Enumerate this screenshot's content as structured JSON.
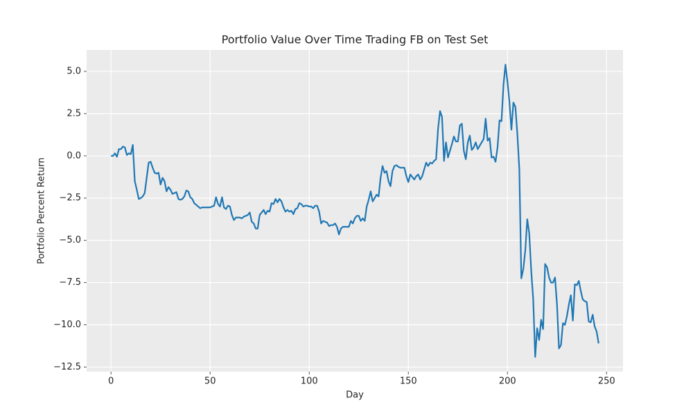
{
  "chart_data": {
    "type": "line",
    "title": "Portfolio Value Over Time Trading FB on Test Set",
    "x_label": "Day",
    "y_label": "Portfolio Percent Return",
    "x": [
      0,
      1,
      2,
      3,
      4,
      5,
      6,
      7,
      8,
      9,
      10,
      11,
      12,
      13,
      14,
      15,
      16,
      17,
      18,
      19,
      20,
      21,
      22,
      23,
      24,
      25,
      26,
      27,
      28,
      29,
      30,
      31,
      32,
      33,
      34,
      35,
      36,
      37,
      38,
      39,
      40,
      41,
      42,
      43,
      44,
      45,
      46,
      47,
      48,
      49,
      50,
      51,
      52,
      53,
      54,
      55,
      56,
      57,
      58,
      59,
      60,
      61,
      62,
      63,
      64,
      65,
      66,
      67,
      68,
      69,
      70,
      71,
      72,
      73,
      74,
      75,
      76,
      77,
      78,
      79,
      80,
      81,
      82,
      83,
      84,
      85,
      86,
      87,
      88,
      89,
      90,
      91,
      92,
      93,
      94,
      95,
      96,
      97,
      98,
      99,
      100,
      101,
      102,
      103,
      104,
      105,
      106,
      107,
      108,
      109,
      110,
      111,
      112,
      113,
      114,
      115,
      116,
      117,
      118,
      119,
      120,
      121,
      122,
      123,
      124,
      125,
      126,
      127,
      128,
      129,
      130,
      131,
      132,
      133,
      134,
      135,
      136,
      137,
      138,
      139,
      140,
      141,
      142,
      143,
      144,
      145,
      146,
      147,
      148,
      149,
      150,
      151,
      152,
      153,
      154,
      155,
      156,
      157,
      158,
      159,
      160,
      161,
      162,
      163,
      164,
      165,
      166,
      167,
      168,
      169,
      170,
      171,
      172,
      173,
      174,
      175,
      176,
      177,
      178,
      179,
      180,
      181,
      182,
      183,
      184,
      185,
      186,
      187,
      188,
      189,
      190,
      191,
      192,
      193,
      194,
      195,
      196,
      197,
      198,
      199,
      200,
      201,
      202,
      203,
      204,
      205,
      206,
      207,
      208,
      209,
      210,
      211,
      212,
      213,
      214,
      215,
      216,
      217,
      218,
      219,
      220,
      221,
      222,
      223,
      224,
      225,
      226,
      227,
      228,
      229,
      230,
      231,
      232,
      233,
      234,
      235,
      236,
      237,
      238,
      239,
      240,
      241,
      242,
      243,
      244,
      245,
      246
    ],
    "series": [
      {
        "color": "#1f77b4",
        "values": [
          0,
          0,
          0.15,
          -0.05,
          0.4,
          0.4,
          0.55,
          0.5,
          0.05,
          0.15,
          0.1,
          0.65,
          -1.5,
          -2.0,
          -2.55,
          -2.5,
          -2.4,
          -2.2,
          -1.3,
          -0.4,
          -0.35,
          -0.7,
          -1.0,
          -1.05,
          -1.0,
          -1.7,
          -1.3,
          -1.5,
          -2.1,
          -1.85,
          -2.0,
          -2.25,
          -2.2,
          -2.15,
          -2.55,
          -2.6,
          -2.55,
          -2.4,
          -2.05,
          -2.1,
          -2.45,
          -2.55,
          -2.8,
          -2.9,
          -3.0,
          -3.1,
          -3.05,
          -3.05,
          -3.05,
          -3.05,
          -3.05,
          -3.0,
          -2.95,
          -2.45,
          -2.85,
          -3.0,
          -2.45,
          -3.05,
          -3.15,
          -2.95,
          -3.0,
          -3.5,
          -3.8,
          -3.65,
          -3.65,
          -3.65,
          -3.7,
          -3.6,
          -3.55,
          -3.5,
          -3.35,
          -3.9,
          -4.0,
          -4.3,
          -4.3,
          -3.5,
          -3.35,
          -3.2,
          -3.45,
          -3.25,
          -3.3,
          -2.8,
          -2.85,
          -2.55,
          -2.75,
          -2.55,
          -2.7,
          -3.05,
          -3.3,
          -3.2,
          -3.3,
          -3.25,
          -3.45,
          -3.15,
          -3.1,
          -2.8,
          -2.85,
          -3.0,
          -2.95,
          -2.95,
          -3.0,
          -3.0,
          -3.1,
          -2.95,
          -2.95,
          -3.3,
          -4.0,
          -3.85,
          -3.9,
          -3.95,
          -4.15,
          -4.1,
          -4.1,
          -4.0,
          -4.2,
          -4.65,
          -4.3,
          -4.2,
          -4.2,
          -4.2,
          -4.2,
          -3.85,
          -4.0,
          -3.7,
          -3.55,
          -3.55,
          -3.85,
          -3.7,
          -3.85,
          -3.0,
          -2.6,
          -2.1,
          -2.7,
          -2.5,
          -2.3,
          -2.4,
          -1.3,
          -0.6,
          -1.0,
          -0.9,
          -1.5,
          -1.8,
          -0.9,
          -0.6,
          -0.55,
          -0.65,
          -0.7,
          -0.7,
          -0.7,
          -1.2,
          -1.55,
          -1.1,
          -1.25,
          -1.4,
          -1.2,
          -1.1,
          -1.4,
          -1.2,
          -0.8,
          -0.4,
          -0.6,
          -0.4,
          -0.45,
          -0.3,
          -0.2,
          1.6,
          2.65,
          2.3,
          -0.3,
          0.8,
          -0.1,
          0.3,
          0.7,
          1.15,
          0.85,
          0.85,
          1.8,
          1.9,
          0.3,
          -0.2,
          0.8,
          1.2,
          0.35,
          0.5,
          0.8,
          0.4,
          0.6,
          0.8,
          1.0,
          2.2,
          0.9,
          1.05,
          -0.1,
          -0.05,
          -0.35,
          0.5,
          2.1,
          2.05,
          4.2,
          5.4,
          4.4,
          3.2,
          1.55,
          3.15,
          2.9,
          1.3,
          -0.8,
          -7.25,
          -6.7,
          -5.6,
          -3.75,
          -4.6,
          -6.8,
          -8.5,
          -11.9,
          -10.2,
          -10.9,
          -9.7,
          -10.25,
          -6.4,
          -6.6,
          -7.2,
          -7.5,
          -7.5,
          -7.2,
          -8.8,
          -11.4,
          -11.2,
          -9.9,
          -10.0,
          -9.5,
          -8.8,
          -8.25,
          -9.75,
          -7.6,
          -7.65,
          -7.4,
          -8.0,
          -8.5,
          -8.6,
          -8.65,
          -9.8,
          -9.85,
          -9.4,
          -10.1,
          -10.4,
          -11.1
        ]
      }
    ],
    "xlim": [
      -12.3,
      258.3
    ],
    "ylim": [
      -12.77,
      6.27
    ],
    "xticks": [
      0,
      50,
      100,
      150,
      200,
      250
    ],
    "yticks": [
      {
        "value": 5,
        "label": "5.0"
      },
      2.5,
      {
        "value": 0,
        "label": "0.0"
      },
      {
        "value": -2.5,
        "label": "−2.5"
      },
      {
        "value": -5,
        "label": "−5.0"
      },
      {
        "value": -7.5,
        "label": "−7.5"
      },
      {
        "value": -10,
        "label": "−10.0"
      },
      {
        "value": -12.5,
        "label": "−12.5"
      }
    ],
    "grid": true
  }
}
